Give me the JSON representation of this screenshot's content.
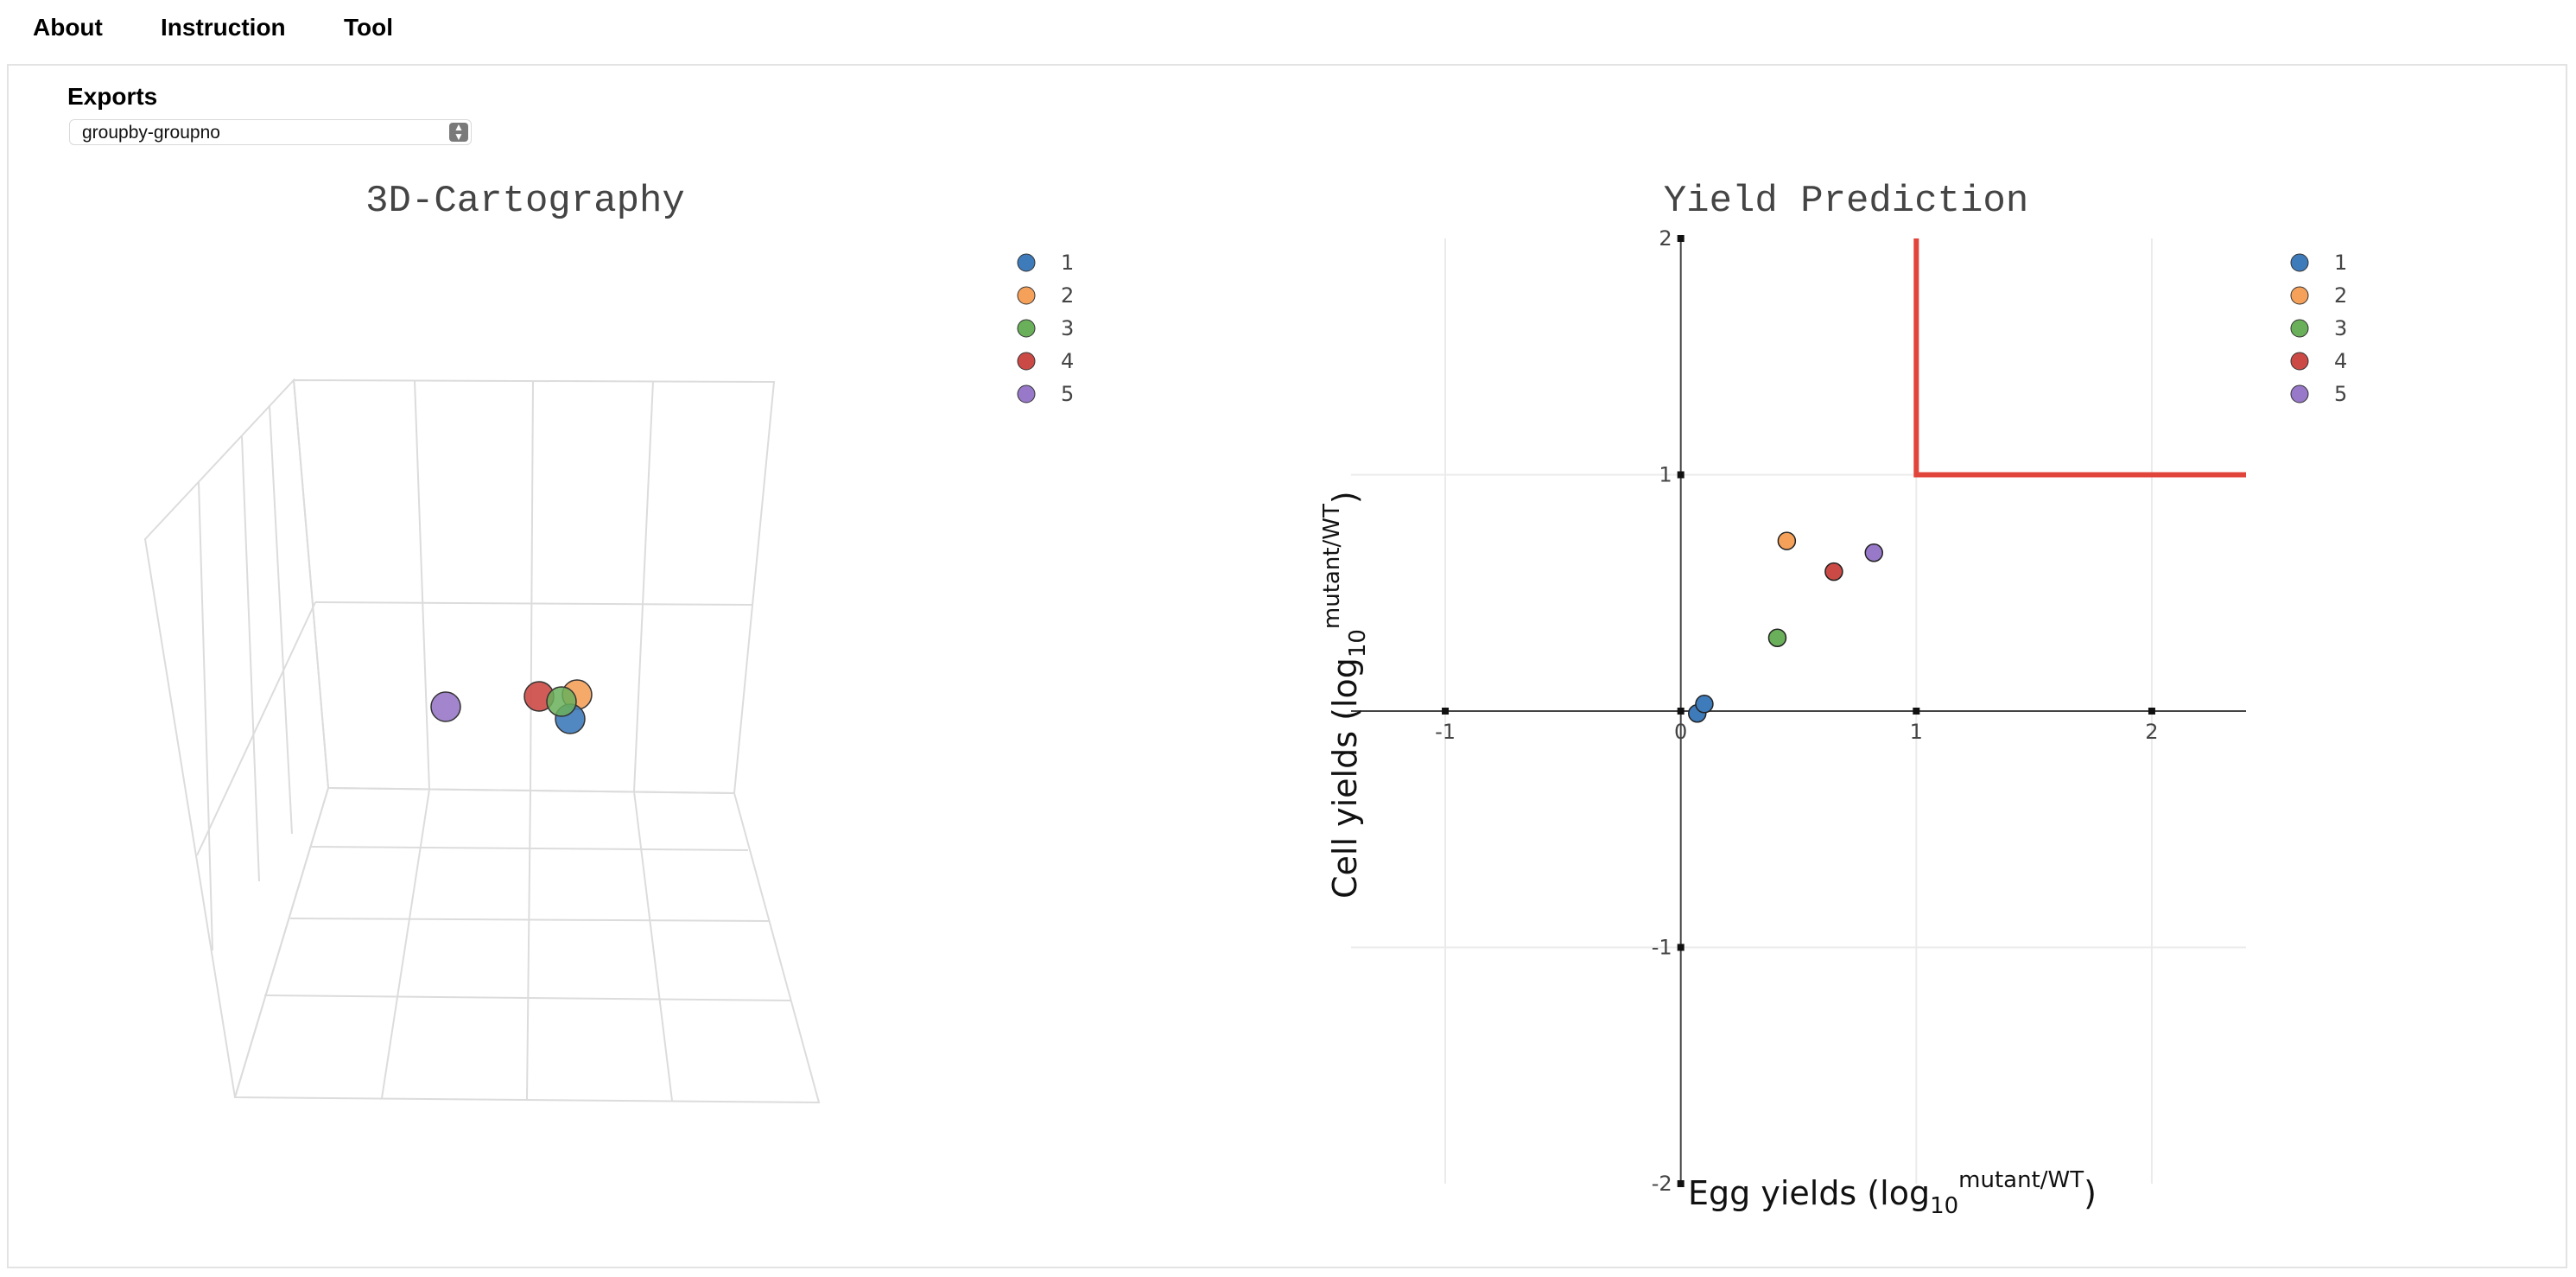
{
  "nav": {
    "items": [
      {
        "label": "About"
      },
      {
        "label": "Instruction"
      },
      {
        "label": "Tool"
      }
    ]
  },
  "exports": {
    "label": "Exports",
    "selected": "groupby-groupno"
  },
  "colors": {
    "series": [
      "#3e7bbb",
      "#f5a15a",
      "#6aaf5a",
      "#cc4a45",
      "#9878c8"
    ],
    "threshold_line": "#e0443a"
  },
  "chart_data": [
    {
      "type": "scatter3d",
      "title": "3D-Cartography",
      "legend": [
        "1",
        "2",
        "3",
        "4",
        "5"
      ],
      "legend_placement": "top-right",
      "grid": true
    },
    {
      "type": "scatter",
      "title": "Yield Prediction",
      "xlabel": "Egg yields (log10 mutant/WT)",
      "xlabel_parts": {
        "main": "Egg yields (log",
        "sub": "10",
        "sup": "mutant/WT",
        "end": ")"
      },
      "ylabel": "Cell yields (log10 mutant/WT)",
      "ylabel_parts": {
        "main": "Cell yields (log",
        "sub": "10",
        "sup": "mutant/WT",
        "end": ")"
      },
      "xlim": [
        -1.4,
        2.4
      ],
      "ylim": [
        -2,
        2
      ],
      "xticks": [
        "-1",
        "0",
        "1",
        "2"
      ],
      "yticks": [
        "-2",
        "-1",
        "1",
        "2"
      ],
      "grid": true,
      "legend": [
        "1",
        "2",
        "3",
        "4",
        "5"
      ],
      "legend_placement": "top-right",
      "series": [
        {
          "name": "1",
          "x": [
            0.07,
            0.1
          ],
          "y": [
            -0.01,
            0.03
          ]
        },
        {
          "name": "2",
          "x": [
            0.45
          ],
          "y": [
            0.72
          ]
        },
        {
          "name": "3",
          "x": [
            0.41
          ],
          "y": [
            0.31
          ]
        },
        {
          "name": "4",
          "x": [
            0.65
          ],
          "y": [
            0.59
          ]
        },
        {
          "name": "5",
          "x": [
            0.82
          ],
          "y": [
            0.67
          ]
        }
      ],
      "threshold": {
        "x": [
          1,
          1,
          2.4
        ],
        "y": [
          2,
          1,
          1
        ]
      }
    }
  ]
}
